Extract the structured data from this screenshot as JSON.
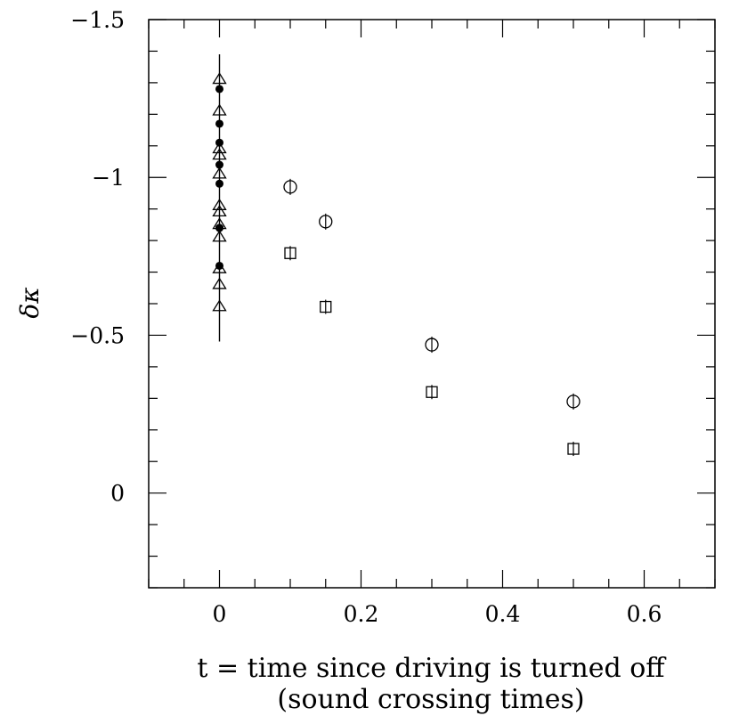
{
  "chart_data": {
    "type": "scatter",
    "title": "",
    "xlabel": "t = time since driving is turned off",
    "xlabel_line2": "(sound crossing times)",
    "ylabel": "δκ",
    "xlim": [
      -0.1,
      0.7
    ],
    "ylim": [
      0.3,
      -1.5
    ],
    "y_inverted": true,
    "x_ticks": [
      0,
      0.2,
      0.4,
      0.6
    ],
    "x_tick_labels": [
      "0",
      "0.2",
      "0.4",
      "0.6"
    ],
    "y_ticks": [
      0,
      -0.5,
      -1,
      -1.5
    ],
    "y_tick_labels": [
      "0",
      "−0.5",
      "−1",
      "−1.5"
    ],
    "grid": false,
    "legend": "none",
    "vertical_error_bar": {
      "x": 0,
      "y_low": -0.48,
      "y_high": -1.39
    },
    "series": [
      {
        "marker": "triangle",
        "x": [
          0,
          0,
          0,
          0,
          0,
          0,
          0,
          0,
          0,
          0,
          0,
          0
        ],
        "y": [
          -1.31,
          -1.21,
          -1.09,
          -1.07,
          -1.01,
          -0.91,
          -0.89,
          -0.85,
          -0.81,
          -0.71,
          -0.66,
          -0.59
        ]
      },
      {
        "marker": "filled-circle",
        "x": [
          0,
          0,
          0,
          0,
          0,
          0,
          0,
          0
        ],
        "y": [
          -1.28,
          -1.17,
          -1.11,
          -1.04,
          -0.98,
          -0.84,
          -0.84,
          -0.72
        ]
      },
      {
        "marker": "circle",
        "x": [
          0.1,
          0.15,
          0.3,
          0.5
        ],
        "y": [
          -0.97,
          -0.86,
          -0.47,
          -0.29
        ]
      },
      {
        "marker": "square",
        "x": [
          0.1,
          0.15,
          0.3,
          0.5
        ],
        "y": [
          -0.76,
          -0.59,
          -0.32,
          -0.14
        ]
      }
    ]
  }
}
